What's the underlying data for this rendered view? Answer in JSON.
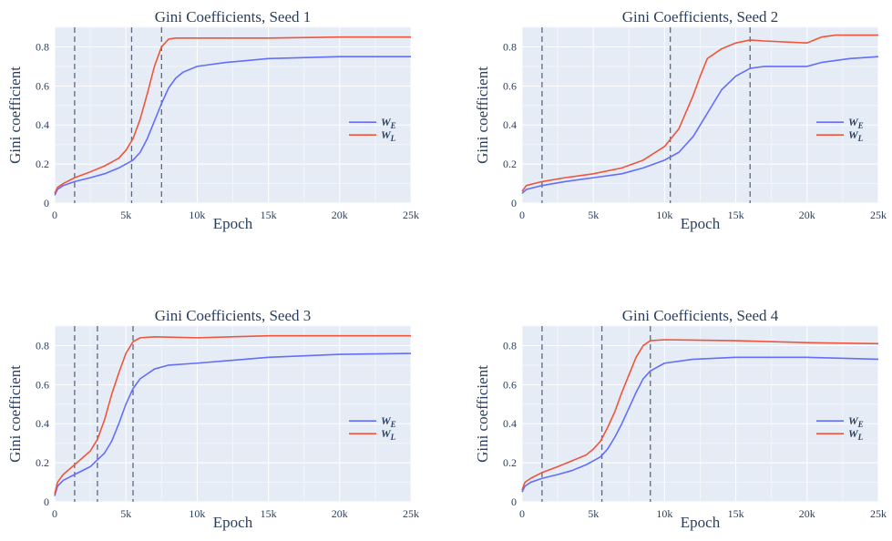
{
  "chart_data": [
    {
      "type": "line",
      "title": "Gini Coefficients, Seed 1",
      "xlabel": "Epoch",
      "ylabel": "Gini coefficient",
      "xlim": [
        0,
        25000
      ],
      "ylim": [
        0,
        0.9
      ],
      "xticks": [
        0,
        5000,
        10000,
        15000,
        20000,
        25000
      ],
      "xtick_labels": [
        "0",
        "5k",
        "10k",
        "15k",
        "20k",
        "25k"
      ],
      "yticks": [
        0,
        0.2,
        0.4,
        0.6,
        0.8
      ],
      "ytick_labels": [
        "0",
        "0.2",
        "0.4",
        "0.6",
        "0.8"
      ],
      "vlines": [
        1400,
        5400,
        7500
      ],
      "legend_position": "right",
      "series": [
        {
          "name": "W_E",
          "color": "#636efa",
          "x": [
            0,
            200,
            600,
            1400,
            2500,
            3500,
            4500,
            5500,
            6000,
            6500,
            7000,
            7500,
            8000,
            8500,
            9000,
            10000,
            12000,
            15000,
            20000,
            25000
          ],
          "y": [
            0.04,
            0.07,
            0.09,
            0.11,
            0.13,
            0.15,
            0.18,
            0.22,
            0.26,
            0.33,
            0.42,
            0.51,
            0.59,
            0.64,
            0.67,
            0.7,
            0.72,
            0.74,
            0.75,
            0.75
          ]
        },
        {
          "name": "W_L",
          "color": "#ef553b",
          "x": [
            0,
            200,
            600,
            1400,
            2500,
            3500,
            4500,
            5000,
            5500,
            6000,
            6500,
            7000,
            7500,
            8000,
            8500,
            10000,
            15000,
            20000,
            25000
          ],
          "y": [
            0.05,
            0.08,
            0.1,
            0.13,
            0.16,
            0.19,
            0.23,
            0.27,
            0.33,
            0.43,
            0.56,
            0.7,
            0.8,
            0.84,
            0.845,
            0.845,
            0.845,
            0.85,
            0.85
          ]
        }
      ]
    },
    {
      "type": "line",
      "title": "Gini Coefficients, Seed 2",
      "xlabel": "Epoch",
      "ylabel": "Gini coefficient",
      "xlim": [
        0,
        25000
      ],
      "ylim": [
        0,
        0.9
      ],
      "xticks": [
        0,
        5000,
        10000,
        15000,
        20000,
        25000
      ],
      "xtick_labels": [
        "0",
        "5k",
        "10k",
        "15k",
        "20k",
        "25k"
      ],
      "yticks": [
        0,
        0.2,
        0.4,
        0.6,
        0.8
      ],
      "ytick_labels": [
        "0",
        "0.2",
        "0.4",
        "0.6",
        "0.8"
      ],
      "vlines": [
        1400,
        10400,
        16000
      ],
      "legend_position": "right",
      "series": [
        {
          "name": "W_E",
          "color": "#636efa",
          "x": [
            0,
            300,
            1400,
            3000,
            5000,
            7000,
            8500,
            10000,
            11000,
            12000,
            13000,
            14000,
            15000,
            16000,
            17000,
            20000,
            21000,
            23000,
            25000
          ],
          "y": [
            0.05,
            0.07,
            0.09,
            0.11,
            0.13,
            0.15,
            0.18,
            0.22,
            0.26,
            0.34,
            0.46,
            0.58,
            0.65,
            0.69,
            0.7,
            0.7,
            0.72,
            0.74,
            0.75
          ]
        },
        {
          "name": "W_L",
          "color": "#ef553b",
          "x": [
            0,
            300,
            1400,
            3000,
            5000,
            7000,
            8500,
            10000,
            11000,
            12000,
            12500,
            13000,
            14000,
            15000,
            16000,
            17000,
            20000,
            21000,
            22000,
            25000
          ],
          "y": [
            0.06,
            0.09,
            0.11,
            0.13,
            0.15,
            0.18,
            0.22,
            0.29,
            0.38,
            0.55,
            0.65,
            0.74,
            0.79,
            0.82,
            0.835,
            0.83,
            0.82,
            0.85,
            0.86,
            0.86
          ]
        }
      ]
    },
    {
      "type": "line",
      "title": "Gini Coefficients, Seed 3",
      "xlabel": "Epoch",
      "ylabel": "Gini coefficient",
      "xlim": [
        0,
        25000
      ],
      "ylim": [
        0,
        0.9
      ],
      "xticks": [
        0,
        5000,
        10000,
        15000,
        20000,
        25000
      ],
      "xtick_labels": [
        "0",
        "5k",
        "10k",
        "15k",
        "20k",
        "25k"
      ],
      "yticks": [
        0,
        0.2,
        0.4,
        0.6,
        0.8
      ],
      "ytick_labels": [
        "0",
        "0.2",
        "0.4",
        "0.6",
        "0.8"
      ],
      "vlines": [
        1400,
        3000,
        5500
      ],
      "legend_position": "right",
      "series": [
        {
          "name": "W_E",
          "color": "#636efa",
          "x": [
            0,
            200,
            600,
            1400,
            2500,
            3500,
            4000,
            4500,
            5000,
            5500,
            6000,
            7000,
            8000,
            10000,
            15000,
            20000,
            25000
          ],
          "y": [
            0.03,
            0.08,
            0.11,
            0.14,
            0.18,
            0.25,
            0.31,
            0.4,
            0.5,
            0.58,
            0.63,
            0.68,
            0.7,
            0.71,
            0.74,
            0.755,
            0.76
          ]
        },
        {
          "name": "W_L",
          "color": "#ef553b",
          "x": [
            0,
            200,
            600,
            1400,
            2500,
            3000,
            3500,
            4000,
            4500,
            5000,
            5500,
            6000,
            7000,
            10000,
            15000,
            20000,
            25000
          ],
          "y": [
            0.04,
            0.1,
            0.14,
            0.19,
            0.26,
            0.32,
            0.42,
            0.55,
            0.66,
            0.76,
            0.82,
            0.84,
            0.845,
            0.84,
            0.85,
            0.85,
            0.85
          ]
        }
      ]
    },
    {
      "type": "line",
      "title": "Gini Coefficients, Seed 4",
      "xlabel": "Epoch",
      "ylabel": "Gini coefficient",
      "xlim": [
        0,
        25000
      ],
      "ylim": [
        0,
        0.9
      ],
      "xticks": [
        0,
        5000,
        10000,
        15000,
        20000,
        25000
      ],
      "xtick_labels": [
        "0",
        "5k",
        "10k",
        "15k",
        "20k",
        "25k"
      ],
      "yticks": [
        0,
        0.2,
        0.4,
        0.6,
        0.8
      ],
      "ytick_labels": [
        "0",
        "0.2",
        "0.4",
        "0.6",
        "0.8"
      ],
      "vlines": [
        1400,
        5600,
        9000
      ],
      "legend_position": "right",
      "series": [
        {
          "name": "W_E",
          "color": "#636efa",
          "x": [
            0,
            200,
            600,
            1400,
            2500,
            3500,
            4500,
            5500,
            6000,
            6500,
            7000,
            7500,
            8000,
            8500,
            9000,
            10000,
            12000,
            15000,
            20000,
            25000
          ],
          "y": [
            0.05,
            0.08,
            0.1,
            0.12,
            0.14,
            0.16,
            0.19,
            0.23,
            0.27,
            0.33,
            0.4,
            0.48,
            0.56,
            0.63,
            0.67,
            0.71,
            0.73,
            0.74,
            0.74,
            0.73
          ]
        },
        {
          "name": "W_L",
          "color": "#ef553b",
          "x": [
            0,
            200,
            600,
            1400,
            2500,
            3500,
            4500,
            5000,
            5500,
            6000,
            6500,
            7000,
            7500,
            8000,
            8500,
            9000,
            10000,
            15000,
            20000,
            25000
          ],
          "y": [
            0.06,
            0.1,
            0.12,
            0.15,
            0.18,
            0.21,
            0.24,
            0.27,
            0.31,
            0.38,
            0.46,
            0.56,
            0.65,
            0.74,
            0.8,
            0.825,
            0.83,
            0.825,
            0.815,
            0.81
          ]
        }
      ]
    }
  ]
}
